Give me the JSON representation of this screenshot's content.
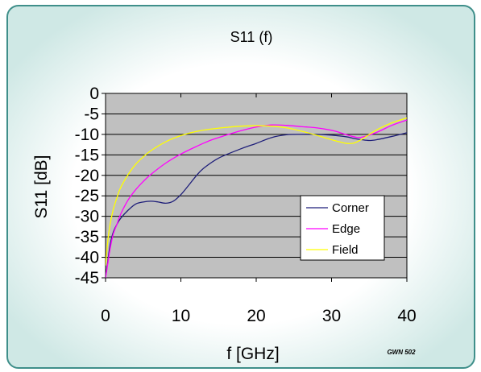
{
  "chart_data": {
    "type": "line",
    "title": "S11 (f)",
    "xlabel": "f [GHz]",
    "ylabel": "S11 [dB]",
    "xlim": [
      0,
      40
    ],
    "ylim": [
      -45,
      0
    ],
    "x_ticks": [
      "0",
      "10",
      "20",
      "30",
      "40"
    ],
    "y_ticks": [
      "0",
      "-5",
      "-10",
      "-15",
      "-20",
      "-25",
      "-30",
      "-35",
      "-40",
      "-45"
    ],
    "grid": "horizontal",
    "legend_position": "bottom-right",
    "series": [
      {
        "name": "Corner",
        "color": "#1f1f7a",
        "x": [
          0,
          0.3,
          0.6,
          1,
          1.5,
          2,
          3,
          4,
          5,
          6,
          7,
          8,
          9,
          10,
          11,
          12,
          13,
          15,
          18,
          20,
          22,
          24,
          26,
          28,
          30,
          32,
          33,
          34,
          35,
          36,
          38,
          40
        ],
        "y": [
          -45,
          -41,
          -37,
          -34,
          -32,
          -30.5,
          -28.5,
          -27,
          -26.5,
          -26.3,
          -26.5,
          -26.8,
          -26.3,
          -24.7,
          -22.5,
          -20.2,
          -18.3,
          -15.8,
          -13.5,
          -12.2,
          -10.8,
          -10.1,
          -10,
          -10,
          -10.2,
          -10.6,
          -11,
          -11.3,
          -11.5,
          -11.3,
          -10.5,
          -9.6
        ]
      },
      {
        "name": "Edge",
        "color": "#ff00ff",
        "x": [
          0,
          0.3,
          0.6,
          1,
          1.5,
          2,
          3,
          4,
          5,
          6,
          8,
          10,
          12,
          14,
          16,
          18,
          20,
          22,
          24,
          26,
          28,
          30,
          31,
          32,
          33,
          34,
          36,
          38,
          40
        ],
        "y": [
          -45,
          -41.5,
          -38,
          -34.5,
          -32,
          -29.5,
          -26,
          -23.5,
          -21.5,
          -19.8,
          -17,
          -14.8,
          -13,
          -11.4,
          -10.2,
          -9.1,
          -8.2,
          -7.7,
          -7.8,
          -8.1,
          -8.4,
          -9,
          -9.5,
          -10.1,
          -10.6,
          -10.7,
          -9.5,
          -7.8,
          -6.5
        ]
      },
      {
        "name": "Field",
        "color": "#ffff00",
        "x": [
          0,
          0.3,
          0.6,
          1,
          1.5,
          2,
          3,
          4,
          5,
          6,
          8,
          10,
          12,
          14,
          16,
          18,
          20,
          22,
          24,
          26,
          28,
          30,
          31,
          32,
          33,
          34,
          36,
          38,
          40
        ],
        "y": [
          -42,
          -36,
          -32,
          -28.5,
          -25.5,
          -23,
          -19.8,
          -17.3,
          -15.5,
          -14,
          -11.8,
          -10.3,
          -9.3,
          -8.7,
          -8.3,
          -8,
          -7.9,
          -8,
          -8.4,
          -9.2,
          -10.2,
          -11.3,
          -11.8,
          -12.2,
          -12.1,
          -11.2,
          -8.9,
          -7.2,
          -6
        ]
      }
    ]
  },
  "footer_mark": "GWN 502",
  "colors": {
    "plot_area": "#c0c0c0",
    "panel_border": "#3f8f8a",
    "panel_fill": "#d8ecea",
    "grid": "#000000"
  }
}
